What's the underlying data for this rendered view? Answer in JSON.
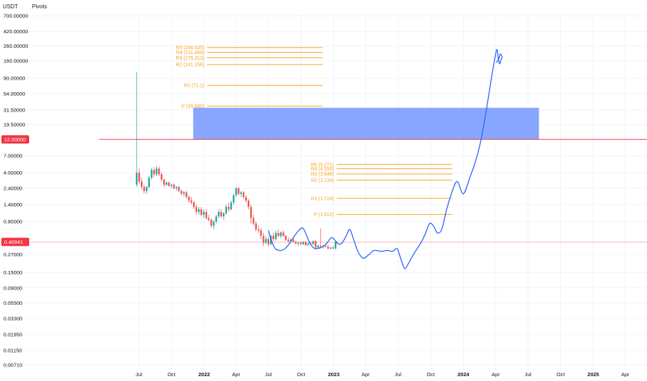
{
  "header": {
    "currency": "USDT",
    "indicator": "Pivots"
  },
  "colors": {
    "up": "#26a69a",
    "down": "#ef5350",
    "pivot": "#f7a21b",
    "drawing": "#2962ff",
    "zone": "#7b9cff",
    "hline": "#f23645",
    "price_badge": "#f23645"
  },
  "chart_data": {
    "type": "candlestick",
    "y_scale": "log",
    "y_ticks": [
      "700.00000",
      "420.00000",
      "260.00000",
      "160.00000",
      "90.00000",
      "54.00000",
      "31.50000",
      "19.50000",
      "7.00000",
      "4.00000",
      "2.40000",
      "1.40000",
      "0.80000",
      "0.27000",
      "0.15000",
      "0.09000",
      "0.05500",
      "0.03300",
      "0.01950",
      "0.01150",
      "0.00710"
    ],
    "x_ticks": [
      {
        "label": "Jul",
        "date": "2021-07"
      },
      {
        "label": "Oct",
        "date": "2021-10"
      },
      {
        "label": "2022",
        "date": "2022-01",
        "bold": true
      },
      {
        "label": "Apr",
        "date": "2022-04"
      },
      {
        "label": "Jul",
        "date": "2022-07"
      },
      {
        "label": "Oct",
        "date": "2022-10"
      },
      {
        "label": "2023",
        "date": "2023-01",
        "bold": true
      },
      {
        "label": "Apr",
        "date": "2023-04"
      },
      {
        "label": "Jul",
        "date": "2023-07"
      },
      {
        "label": "Oct",
        "date": "2023-10"
      },
      {
        "label": "2024",
        "date": "2024-01",
        "bold": true
      },
      {
        "label": "Apr",
        "date": "2024-04"
      },
      {
        "label": "Jul",
        "date": "2024-07"
      },
      {
        "label": "Oct",
        "date": "2024-10"
      },
      {
        "label": "2025",
        "date": "2025-01",
        "bold": true
      },
      {
        "label": "Apr",
        "date": "2025-04"
      }
    ],
    "price_badges": [
      {
        "label": "12.00000",
        "value": 12.0
      },
      {
        "label": "0.40941",
        "value": 0.40941
      }
    ],
    "pivot_sets": [
      {
        "start": "2021-12",
        "end": "2022-12",
        "levels": [
          {
            "label": "R5 (246.625)",
            "value": 246.625
          },
          {
            "label": "R4 (211.469)",
            "value": 211.469
          },
          {
            "label": "R3 (176.313)",
            "value": 176.313
          },
          {
            "label": "R2 (141.156)",
            "value": 141.156
          },
          {
            "label": "R1 (71.1)",
            "value": 71.1
          },
          {
            "label": "P (35.945)",
            "value": 35.945
          }
        ]
      },
      {
        "start": "2022-12",
        "end": "2023-12",
        "levels": [
          {
            "label": "R5 (5.271)",
            "value": 5.271
          },
          {
            "label": "R4 (4.559)",
            "value": 4.559
          },
          {
            "label": "R3 (3.846)",
            "value": 3.846
          },
          {
            "label": "R2 (3.134)",
            "value": 3.134
          },
          {
            "label": "R1 (1.724)",
            "value": 1.724
          },
          {
            "label": "P (1.012)",
            "value": 1.012
          }
        ]
      }
    ],
    "zone": {
      "x_start": "2021-12",
      "x_end": "2024-08",
      "y_low": 12.0,
      "y_high": 34.0
    },
    "horizontal_line": {
      "value": 12.0
    },
    "candles": [
      {
        "d": "2021-06-21",
        "o": 2.7,
        "h": 110,
        "l": 2.5,
        "c": 4.0
      },
      {
        "d": "2021-06-28",
        "o": 4.0,
        "h": 4.6,
        "l": 2.8,
        "c": 3.0
      },
      {
        "d": "2021-07-05",
        "o": 3.0,
        "h": 3.4,
        "l": 2.3,
        "c": 2.5
      },
      {
        "d": "2021-07-12",
        "o": 2.5,
        "h": 2.7,
        "l": 2.0,
        "c": 2.2
      },
      {
        "d": "2021-07-19",
        "o": 2.2,
        "h": 2.6,
        "l": 2.0,
        "c": 2.5
      },
      {
        "d": "2021-07-26",
        "o": 2.5,
        "h": 3.6,
        "l": 2.4,
        "c": 3.4
      },
      {
        "d": "2021-08-02",
        "o": 3.4,
        "h": 4.7,
        "l": 3.2,
        "c": 4.4
      },
      {
        "d": "2021-08-09",
        "o": 4.4,
        "h": 4.8,
        "l": 3.5,
        "c": 3.8
      },
      {
        "d": "2021-08-16",
        "o": 3.8,
        "h": 5.0,
        "l": 3.6,
        "c": 4.6
      },
      {
        "d": "2021-08-23",
        "o": 4.6,
        "h": 4.9,
        "l": 3.6,
        "c": 3.8
      },
      {
        "d": "2021-08-30",
        "o": 3.8,
        "h": 4.1,
        "l": 3.0,
        "c": 3.2
      },
      {
        "d": "2021-09-06",
        "o": 3.2,
        "h": 3.3,
        "l": 2.5,
        "c": 2.7
      },
      {
        "d": "2021-09-13",
        "o": 2.7,
        "h": 3.0,
        "l": 2.6,
        "c": 2.9
      },
      {
        "d": "2021-09-20",
        "o": 2.9,
        "h": 3.0,
        "l": 2.5,
        "c": 2.6
      },
      {
        "d": "2021-09-27",
        "o": 2.6,
        "h": 2.8,
        "l": 2.4,
        "c": 2.7
      },
      {
        "d": "2021-10-04",
        "o": 2.7,
        "h": 2.8,
        "l": 2.3,
        "c": 2.4
      },
      {
        "d": "2021-10-11",
        "o": 2.4,
        "h": 2.6,
        "l": 2.2,
        "c": 2.5
      },
      {
        "d": "2021-10-18",
        "o": 2.5,
        "h": 2.6,
        "l": 2.1,
        "c": 2.2
      },
      {
        "d": "2021-10-25",
        "o": 2.2,
        "h": 2.3,
        "l": 1.9,
        "c": 2.0
      },
      {
        "d": "2021-11-01",
        "o": 2.0,
        "h": 2.2,
        "l": 1.8,
        "c": 2.1
      },
      {
        "d": "2021-11-08",
        "o": 2.1,
        "h": 2.2,
        "l": 1.7,
        "c": 1.8
      },
      {
        "d": "2021-11-15",
        "o": 1.8,
        "h": 1.9,
        "l": 1.5,
        "c": 1.6
      },
      {
        "d": "2021-11-22",
        "o": 1.6,
        "h": 1.8,
        "l": 1.4,
        "c": 1.5
      },
      {
        "d": "2021-11-29",
        "o": 1.5,
        "h": 1.6,
        "l": 1.2,
        "c": 1.3
      },
      {
        "d": "2021-12-06",
        "o": 1.3,
        "h": 1.4,
        "l": 1.0,
        "c": 1.1
      },
      {
        "d": "2021-12-13",
        "o": 1.1,
        "h": 1.3,
        "l": 1.0,
        "c": 1.2
      },
      {
        "d": "2021-12-20",
        "o": 1.2,
        "h": 1.3,
        "l": 0.95,
        "c": 1.0
      },
      {
        "d": "2021-12-27",
        "o": 1.0,
        "h": 1.2,
        "l": 0.9,
        "c": 1.1
      },
      {
        "d": "2022-01-03",
        "o": 1.1,
        "h": 1.2,
        "l": 0.85,
        "c": 0.9
      },
      {
        "d": "2022-01-10",
        "o": 0.9,
        "h": 1.0,
        "l": 0.8,
        "c": 0.85
      },
      {
        "d": "2022-01-17",
        "o": 0.85,
        "h": 0.9,
        "l": 0.65,
        "c": 0.7
      },
      {
        "d": "2022-01-24",
        "o": 0.7,
        "h": 0.85,
        "l": 0.62,
        "c": 0.8
      },
      {
        "d": "2022-01-31",
        "o": 0.8,
        "h": 1.0,
        "l": 0.75,
        "c": 0.95
      },
      {
        "d": "2022-02-07",
        "o": 0.95,
        "h": 1.2,
        "l": 0.9,
        "c": 1.1
      },
      {
        "d": "2022-02-14",
        "o": 1.1,
        "h": 1.2,
        "l": 0.9,
        "c": 0.95
      },
      {
        "d": "2022-02-21",
        "o": 0.95,
        "h": 1.1,
        "l": 0.85,
        "c": 1.05
      },
      {
        "d": "2022-02-28",
        "o": 1.05,
        "h": 1.4,
        "l": 1.0,
        "c": 1.3
      },
      {
        "d": "2022-03-07",
        "o": 1.3,
        "h": 1.5,
        "l": 1.1,
        "c": 1.2
      },
      {
        "d": "2022-03-14",
        "o": 1.2,
        "h": 1.6,
        "l": 1.15,
        "c": 1.5
      },
      {
        "d": "2022-03-21",
        "o": 1.5,
        "h": 2.0,
        "l": 1.4,
        "c": 1.9
      },
      {
        "d": "2022-03-28",
        "o": 1.9,
        "h": 2.5,
        "l": 1.8,
        "c": 2.4
      },
      {
        "d": "2022-04-04",
        "o": 2.4,
        "h": 2.5,
        "l": 1.9,
        "c": 2.0
      },
      {
        "d": "2022-04-11",
        "o": 2.0,
        "h": 2.2,
        "l": 1.8,
        "c": 2.1
      },
      {
        "d": "2022-04-18",
        "o": 2.1,
        "h": 2.2,
        "l": 1.7,
        "c": 1.8
      },
      {
        "d": "2022-04-25",
        "o": 1.8,
        "h": 1.9,
        "l": 1.5,
        "c": 1.6
      },
      {
        "d": "2022-05-02",
        "o": 1.6,
        "h": 1.7,
        "l": 1.2,
        "c": 1.3
      },
      {
        "d": "2022-05-09",
        "o": 1.3,
        "h": 1.4,
        "l": 0.75,
        "c": 0.9
      },
      {
        "d": "2022-05-16",
        "o": 0.9,
        "h": 1.0,
        "l": 0.7,
        "c": 0.75
      },
      {
        "d": "2022-05-23",
        "o": 0.75,
        "h": 0.8,
        "l": 0.58,
        "c": 0.62
      },
      {
        "d": "2022-05-30",
        "o": 0.62,
        "h": 0.7,
        "l": 0.55,
        "c": 0.6
      },
      {
        "d": "2022-06-06",
        "o": 0.6,
        "h": 0.65,
        "l": 0.45,
        "c": 0.5
      },
      {
        "d": "2022-06-13",
        "o": 0.5,
        "h": 0.55,
        "l": 0.36,
        "c": 0.4
      },
      {
        "d": "2022-06-20",
        "o": 0.4,
        "h": 0.5,
        "l": 0.38,
        "c": 0.45
      },
      {
        "d": "2022-06-27",
        "o": 0.45,
        "h": 0.48,
        "l": 0.35,
        "c": 0.38
      },
      {
        "d": "2022-07-04",
        "o": 0.38,
        "h": 0.52,
        "l": 0.37,
        "c": 0.5
      },
      {
        "d": "2022-07-11",
        "o": 0.5,
        "h": 0.56,
        "l": 0.42,
        "c": 0.45
      },
      {
        "d": "2022-07-18",
        "o": 0.45,
        "h": 0.6,
        "l": 0.43,
        "c": 0.55
      },
      {
        "d": "2022-07-25",
        "o": 0.55,
        "h": 0.62,
        "l": 0.48,
        "c": 0.5
      },
      {
        "d": "2022-08-01",
        "o": 0.5,
        "h": 0.58,
        "l": 0.47,
        "c": 0.56
      },
      {
        "d": "2022-08-08",
        "o": 0.56,
        "h": 0.6,
        "l": 0.48,
        "c": 0.5
      },
      {
        "d": "2022-08-15",
        "o": 0.5,
        "h": 0.52,
        "l": 0.42,
        "c": 0.44
      },
      {
        "d": "2022-08-22",
        "o": 0.44,
        "h": 0.48,
        "l": 0.4,
        "c": 0.42
      },
      {
        "d": "2022-08-29",
        "o": 0.42,
        "h": 0.46,
        "l": 0.39,
        "c": 0.44
      },
      {
        "d": "2022-09-05",
        "o": 0.44,
        "h": 0.47,
        "l": 0.4,
        "c": 0.41
      },
      {
        "d": "2022-09-12",
        "o": 0.41,
        "h": 0.43,
        "l": 0.37,
        "c": 0.39
      },
      {
        "d": "2022-09-19",
        "o": 0.39,
        "h": 0.41,
        "l": 0.36,
        "c": 0.4
      },
      {
        "d": "2022-09-26",
        "o": 0.4,
        "h": 0.42,
        "l": 0.37,
        "c": 0.38
      },
      {
        "d": "2022-10-03",
        "o": 0.38,
        "h": 0.42,
        "l": 0.37,
        "c": 0.41
      },
      {
        "d": "2022-10-10",
        "o": 0.41,
        "h": 0.42,
        "l": 0.36,
        "c": 0.37
      },
      {
        "d": "2022-10-17",
        "o": 0.37,
        "h": 0.4,
        "l": 0.36,
        "c": 0.39
      },
      {
        "d": "2022-10-24",
        "o": 0.39,
        "h": 0.41,
        "l": 0.37,
        "c": 0.38
      },
      {
        "d": "2022-10-31",
        "o": 0.38,
        "h": 0.43,
        "l": 0.37,
        "c": 0.42
      },
      {
        "d": "2022-11-07",
        "o": 0.42,
        "h": 0.44,
        "l": 0.32,
        "c": 0.34
      },
      {
        "d": "2022-11-14",
        "o": 0.34,
        "h": 0.38,
        "l": 0.33,
        "c": 0.36
      },
      {
        "d": "2022-11-21",
        "o": 0.36,
        "h": 0.64,
        "l": 0.33,
        "c": 0.35
      },
      {
        "d": "2022-11-28",
        "o": 0.35,
        "h": 0.37,
        "l": 0.33,
        "c": 0.36
      },
      {
        "d": "2022-12-05",
        "o": 0.36,
        "h": 0.38,
        "l": 0.34,
        "c": 0.35
      },
      {
        "d": "2022-12-12",
        "o": 0.35,
        "h": 0.37,
        "l": 0.32,
        "c": 0.33
      },
      {
        "d": "2022-12-19",
        "o": 0.33,
        "h": 0.35,
        "l": 0.32,
        "c": 0.34
      },
      {
        "d": "2022-12-26",
        "o": 0.34,
        "h": 0.36,
        "l": 0.32,
        "c": 0.33
      },
      {
        "d": "2023-01-02",
        "o": 0.33,
        "h": 0.42,
        "l": 0.32,
        "c": 0.41
      }
    ],
    "drawing_path": [
      [
        "2022-07-01",
        0.6
      ],
      [
        "2022-07-08",
        0.45
      ],
      [
        "2022-07-20",
        0.33
      ],
      [
        "2022-08-05",
        0.31
      ],
      [
        "2022-08-20",
        0.34
      ],
      [
        "2022-09-05",
        0.44
      ],
      [
        "2022-09-22",
        0.58
      ],
      [
        "2022-10-05",
        0.65
      ],
      [
        "2022-10-15",
        0.53
      ],
      [
        "2022-10-25",
        0.4
      ],
      [
        "2022-11-08",
        0.33
      ],
      [
        "2022-11-25",
        0.34
      ],
      [
        "2022-12-10",
        0.38
      ],
      [
        "2022-12-25",
        0.47
      ],
      [
        "2023-01-05",
        0.43
      ],
      [
        "2023-01-15",
        0.38
      ],
      [
        "2023-01-25",
        0.4
      ],
      [
        "2023-02-05",
        0.5
      ],
      [
        "2023-02-15",
        0.62
      ],
      [
        "2023-02-25",
        0.46
      ],
      [
        "2023-03-10",
        0.3
      ],
      [
        "2023-03-25",
        0.24
      ],
      [
        "2023-04-10",
        0.27
      ],
      [
        "2023-04-25",
        0.31
      ],
      [
        "2023-05-15",
        0.3
      ],
      [
        "2023-06-01",
        0.31
      ],
      [
        "2023-06-15",
        0.3
      ],
      [
        "2023-06-28",
        0.33
      ],
      [
        "2023-07-05",
        0.27
      ],
      [
        "2023-07-12",
        0.21
      ],
      [
        "2023-07-20",
        0.17
      ],
      [
        "2023-07-30",
        0.2
      ],
      [
        "2023-08-15",
        0.28
      ],
      [
        "2023-09-01",
        0.38
      ],
      [
        "2023-09-15",
        0.52
      ],
      [
        "2023-09-28",
        0.75
      ],
      [
        "2023-10-10",
        0.68
      ],
      [
        "2023-10-20",
        0.55
      ],
      [
        "2023-11-01",
        0.62
      ],
      [
        "2023-11-15",
        1.2
      ],
      [
        "2023-12-01",
        2.2
      ],
      [
        "2023-12-15",
        3.0
      ],
      [
        "2024-01-01",
        2.0
      ],
      [
        "2024-01-20",
        3.5
      ],
      [
        "2024-02-05",
        6.0
      ],
      [
        "2024-02-20",
        12.0
      ],
      [
        "2024-03-05",
        30
      ],
      [
        "2024-03-20",
        90
      ],
      [
        "2024-04-01",
        200
      ],
      [
        "2024-04-05",
        230
      ],
      [
        "2024-04-08",
        180
      ],
      [
        "2024-04-12",
        145
      ],
      [
        "2024-04-16",
        165
      ],
      [
        "2024-04-19",
        180
      ],
      [
        "2024-04-14",
        200
      ],
      [
        "2024-04-10",
        170
      ],
      [
        "2024-04-06",
        160
      ],
      [
        "2024-04-03",
        150
      ]
    ]
  }
}
